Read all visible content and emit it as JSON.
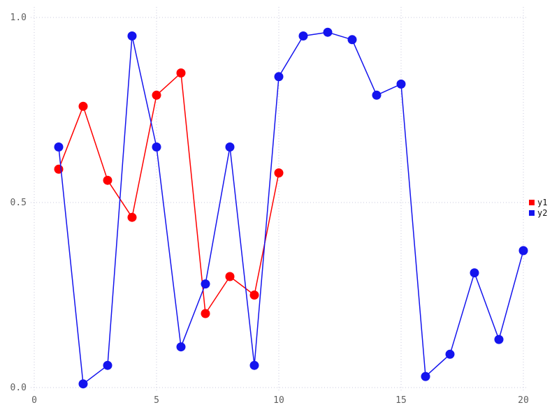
{
  "chart_data": {
    "type": "line",
    "title": "",
    "xlabel": "",
    "ylabel": "",
    "xlim": [
      0,
      20
    ],
    "ylim": [
      0,
      1
    ],
    "xticks": {
      "values": [
        0,
        5,
        10,
        15,
        20
      ],
      "labels": [
        "0",
        "5",
        "10",
        "15",
        "20"
      ]
    },
    "yticks": {
      "values": [
        0,
        0.5,
        1.0
      ],
      "labels": [
        "0.0",
        "0.5",
        "1.0"
      ]
    },
    "grid": "dotted",
    "legend_position": "right-outside",
    "series": [
      {
        "name": "y1",
        "color": "#ff0000",
        "marker": "circle",
        "x": [
          1,
          2,
          3,
          4,
          5,
          6,
          7,
          8,
          9,
          10
        ],
        "y": [
          0.59,
          0.76,
          0.56,
          0.46,
          0.79,
          0.85,
          0.2,
          0.3,
          0.25,
          0.58
        ]
      },
      {
        "name": "y2",
        "color": "#1414ee",
        "marker": "circle",
        "x": [
          1,
          2,
          3,
          4,
          5,
          6,
          7,
          8,
          9,
          10,
          11,
          12,
          13,
          14,
          15,
          16,
          17,
          18,
          19,
          20
        ],
        "y": [
          0.65,
          0.01,
          0.06,
          0.95,
          0.65,
          0.11,
          0.28,
          0.65,
          0.06,
          0.84,
          0.95,
          0.96,
          0.94,
          0.79,
          0.82,
          0.03,
          0.09,
          0.31,
          0.13,
          0.37
        ]
      }
    ]
  },
  "colors": {
    "background": "#ffffff",
    "grid": "#c9c9dc",
    "tick_label": "#606060",
    "legend_text": "#111111"
  }
}
